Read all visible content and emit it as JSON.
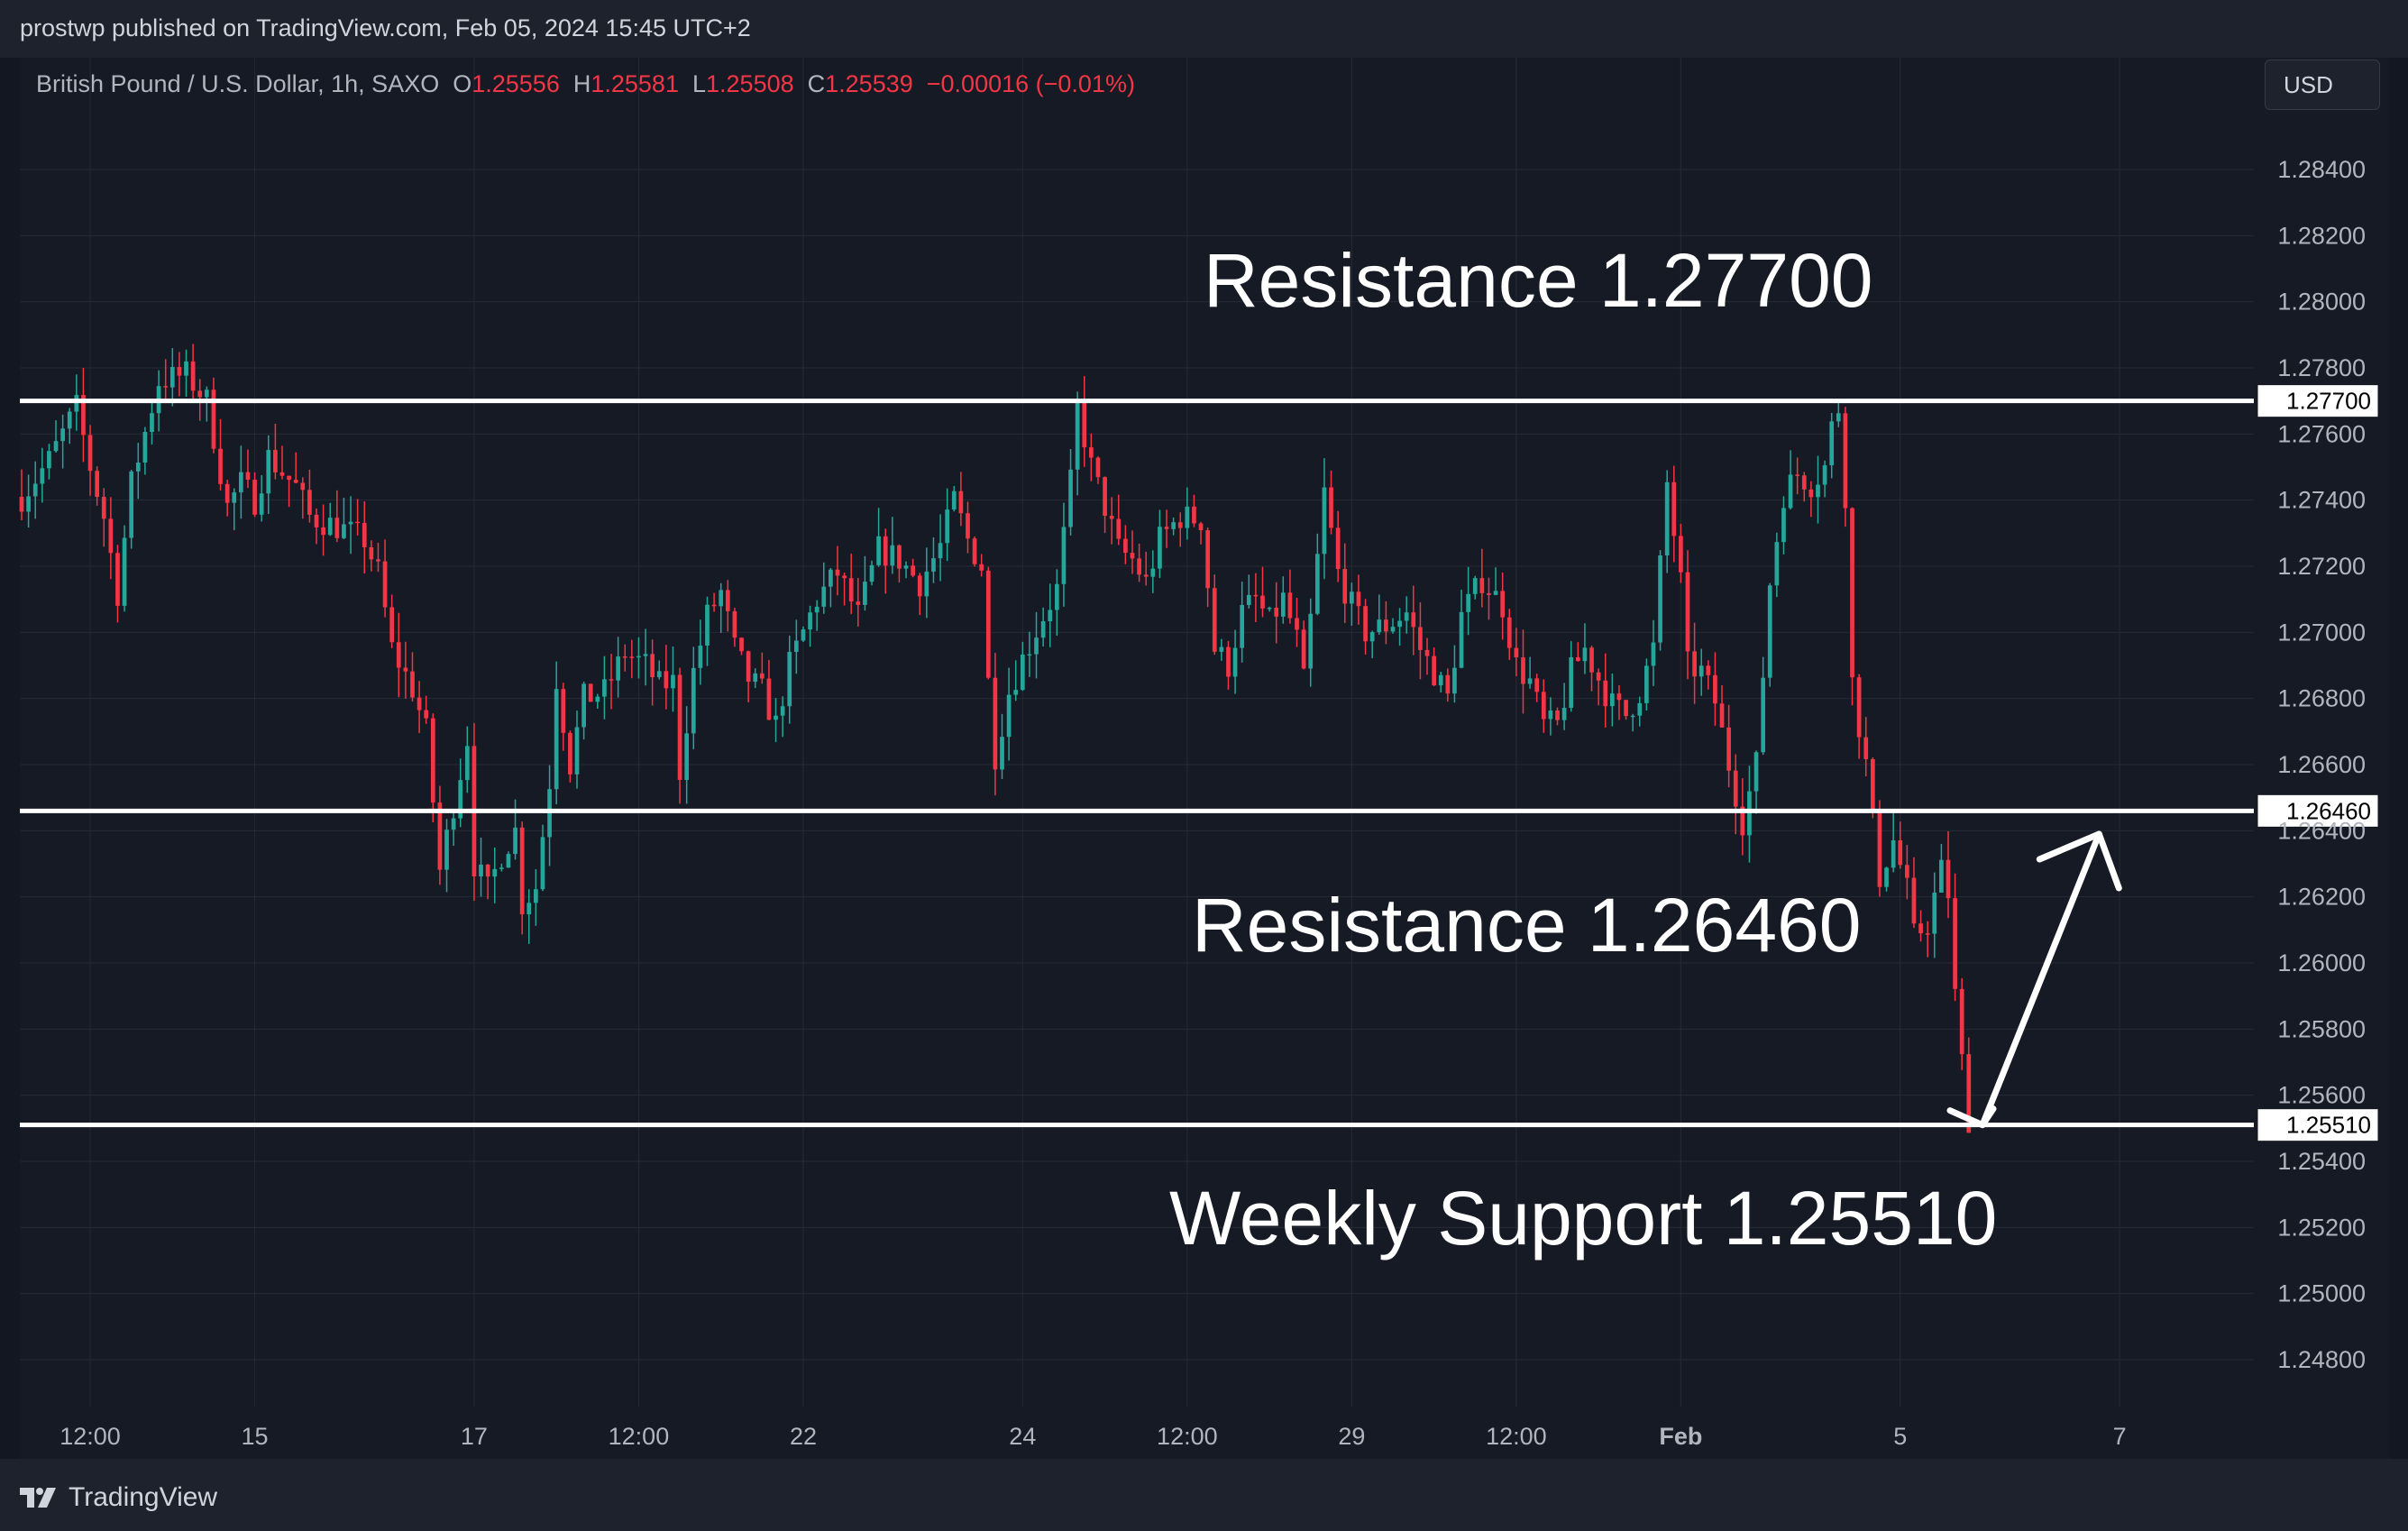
{
  "header": {
    "publisher_text": "prostwp published on TradingView.com, Feb 05, 2024 15:45 UTC+2"
  },
  "legend": {
    "symbol": "British Pound / U.S. Dollar, 1h, SAXO",
    "open_label": "O",
    "open": "1.25556",
    "high_label": "H",
    "high": "1.25581",
    "low_label": "L",
    "low": "1.25508",
    "close_label": "C",
    "close": "1.25539",
    "change": "−0.00016 (−0.01%)"
  },
  "currency_button": {
    "label": "USD"
  },
  "footer": {
    "brand": "TradingView"
  },
  "colors": {
    "up": "#26a69a",
    "down": "#f23645",
    "background": "#161a25",
    "grid": "#262a35",
    "line": "#ffffff"
  },
  "chart_data": {
    "type": "candlestick",
    "symbol": "GBPUSD",
    "timeframe": "1h",
    "y_range": [
      1.2475,
      1.2895
    ],
    "y_ticks": [
      "1.28400",
      "1.28200",
      "1.28000",
      "1.27800",
      "1.27600",
      "1.27400",
      "1.27200",
      "1.27000",
      "1.26800",
      "1.26600",
      "1.26400",
      "1.26200",
      "1.26000",
      "1.25800",
      "1.25600",
      "1.25400",
      "1.25200",
      "1.25000",
      "1.24800"
    ],
    "x_ticks": [
      {
        "label": "12:00",
        "bar": 10
      },
      {
        "label": "15",
        "bar": 34
      },
      {
        "label": "17",
        "bar": 66
      },
      {
        "label": "12:00",
        "bar": 90
      },
      {
        "label": "22",
        "bar": 114
      },
      {
        "label": "24",
        "bar": 146
      },
      {
        "label": "12:00",
        "bar": 170
      },
      {
        "label": "29",
        "bar": 194
      },
      {
        "label": "12:00",
        "bar": 218
      },
      {
        "label": "Feb",
        "bar": 242,
        "bold": true
      },
      {
        "label": "5",
        "bar": 274
      },
      {
        "label": "7",
        "bar": 306
      }
    ],
    "total_bar_slots": 324,
    "anchors": [
      [
        0,
        1.2741
      ],
      [
        4,
        1.2752
      ],
      [
        8,
        1.2768
      ],
      [
        10,
        1.275
      ],
      [
        12,
        1.2735
      ],
      [
        14,
        1.2712
      ],
      [
        16,
        1.2745
      ],
      [
        20,
        1.2776
      ],
      [
        24,
        1.2778
      ],
      [
        27,
        1.277
      ],
      [
        30,
        1.2738
      ],
      [
        32,
        1.2745
      ],
      [
        34,
        1.274
      ],
      [
        36,
        1.2753
      ],
      [
        40,
        1.2744
      ],
      [
        42,
        1.2735
      ],
      [
        46,
        1.2732
      ],
      [
        50,
        1.2728
      ],
      [
        52,
        1.2718
      ],
      [
        54,
        1.2695
      ],
      [
        57,
        1.2683
      ],
      [
        59,
        1.267
      ],
      [
        61,
        1.2628
      ],
      [
        63,
        1.2648
      ],
      [
        65,
        1.2668
      ],
      [
        66,
        1.263
      ],
      [
        68,
        1.2622
      ],
      [
        70,
        1.2633
      ],
      [
        72,
        1.264
      ],
      [
        73,
        1.2618
      ],
      [
        75,
        1.2623
      ],
      [
        77,
        1.2655
      ],
      [
        78,
        1.2686
      ],
      [
        80,
        1.266
      ],
      [
        82,
        1.268
      ],
      [
        85,
        1.2682
      ],
      [
        88,
        1.2694
      ],
      [
        91,
        1.269
      ],
      [
        93,
        1.2684
      ],
      [
        95,
        1.2685
      ],
      [
        96,
        1.2658
      ],
      [
        98,
        1.2688
      ],
      [
        100,
        1.2705
      ],
      [
        102,
        1.2712
      ],
      [
        104,
        1.2695
      ],
      [
        106,
        1.2686
      ],
      [
        108,
        1.2682
      ],
      [
        110,
        1.2672
      ],
      [
        112,
        1.269
      ],
      [
        114,
        1.27
      ],
      [
        116,
        1.271
      ],
      [
        119,
        1.2718
      ],
      [
        122,
        1.2705
      ],
      [
        125,
        1.2725
      ],
      [
        128,
        1.2722
      ],
      [
        131,
        1.2715
      ],
      [
        134,
        1.2726
      ],
      [
        136,
        1.274
      ],
      [
        138,
        1.2728
      ],
      [
        140,
        1.272
      ],
      [
        141,
        1.2685
      ],
      [
        142,
        1.2663
      ],
      [
        144,
        1.2682
      ],
      [
        146,
        1.2692
      ],
      [
        149,
        1.2705
      ],
      [
        151,
        1.2713
      ],
      [
        153,
        1.2745
      ],
      [
        154,
        1.2768
      ],
      [
        156,
        1.275
      ],
      [
        158,
        1.2738
      ],
      [
        160,
        1.2725
      ],
      [
        162,
        1.2722
      ],
      [
        164,
        1.2715
      ],
      [
        166,
        1.2728
      ],
      [
        169,
        1.2735
      ],
      [
        172,
        1.2734
      ],
      [
        174,
        1.2695
      ],
      [
        176,
        1.269
      ],
      [
        178,
        1.2706
      ],
      [
        180,
        1.271
      ],
      [
        182,
        1.2703
      ],
      [
        184,
        1.271
      ],
      [
        186,
        1.2698
      ],
      [
        187,
        1.2685
      ],
      [
        189,
        1.2722
      ],
      [
        190,
        1.2742
      ],
      [
        192,
        1.2718
      ],
      [
        194,
        1.2708
      ],
      [
        196,
        1.27
      ],
      [
        199,
        1.2702
      ],
      [
        202,
        1.2706
      ],
      [
        204,
        1.2695
      ],
      [
        206,
        1.2688
      ],
      [
        208,
        1.268
      ],
      [
        210,
        1.2705
      ],
      [
        213,
        1.2716
      ],
      [
        216,
        1.2708
      ],
      [
        218,
        1.269
      ],
      [
        220,
        1.2685
      ],
      [
        222,
        1.2672
      ],
      [
        224,
        1.2672
      ],
      [
        226,
        1.2688
      ],
      [
        228,
        1.2695
      ],
      [
        230,
        1.2686
      ],
      [
        232,
        1.2678
      ],
      [
        234,
        1.2675
      ],
      [
        236,
        1.2682
      ],
      [
        238,
        1.2695
      ],
      [
        239,
        1.272
      ],
      [
        240,
        1.2745
      ],
      [
        242,
        1.2715
      ],
      [
        243,
        1.269
      ],
      [
        245,
        1.2688
      ],
      [
        247,
        1.2679
      ],
      [
        249,
        1.266
      ],
      [
        251,
        1.2643
      ],
      [
        253,
        1.266
      ],
      [
        255,
        1.2715
      ],
      [
        257,
        1.2742
      ],
      [
        259,
        1.2748
      ],
      [
        261,
        1.2745
      ],
      [
        263,
        1.275
      ],
      [
        264,
        1.2762
      ],
      [
        265,
        1.2768
      ],
      [
        266,
        1.2742
      ],
      [
        267,
        1.2685
      ],
      [
        268,
        1.2672
      ],
      [
        269,
        1.266
      ],
      [
        270,
        1.2642
      ],
      [
        271,
        1.2626
      ],
      [
        273,
        1.2637
      ],
      [
        275,
        1.2622
      ],
      [
        276,
        1.2608
      ],
      [
        278,
        1.2612
      ],
      [
        280,
        1.2628
      ],
      [
        281,
        1.2621
      ],
      [
        282,
        1.259
      ],
      [
        283,
        1.257
      ],
      [
        284,
        1.2553
      ]
    ],
    "horizontal_levels": [
      {
        "value": 1.277,
        "tag": "1.27700",
        "label": "Resistance 1.27700"
      },
      {
        "value": 1.2646,
        "tag": "1.26460",
        "label": "Resistance 1.26460"
      },
      {
        "value": 1.2551,
        "tag": "1.25510",
        "label": "Weekly Support 1.25510"
      }
    ],
    "arrow": {
      "from_bar": 286,
      "from_price": 1.2551,
      "to_bar": 303,
      "to_price": 1.2639
    },
    "grid": true
  }
}
